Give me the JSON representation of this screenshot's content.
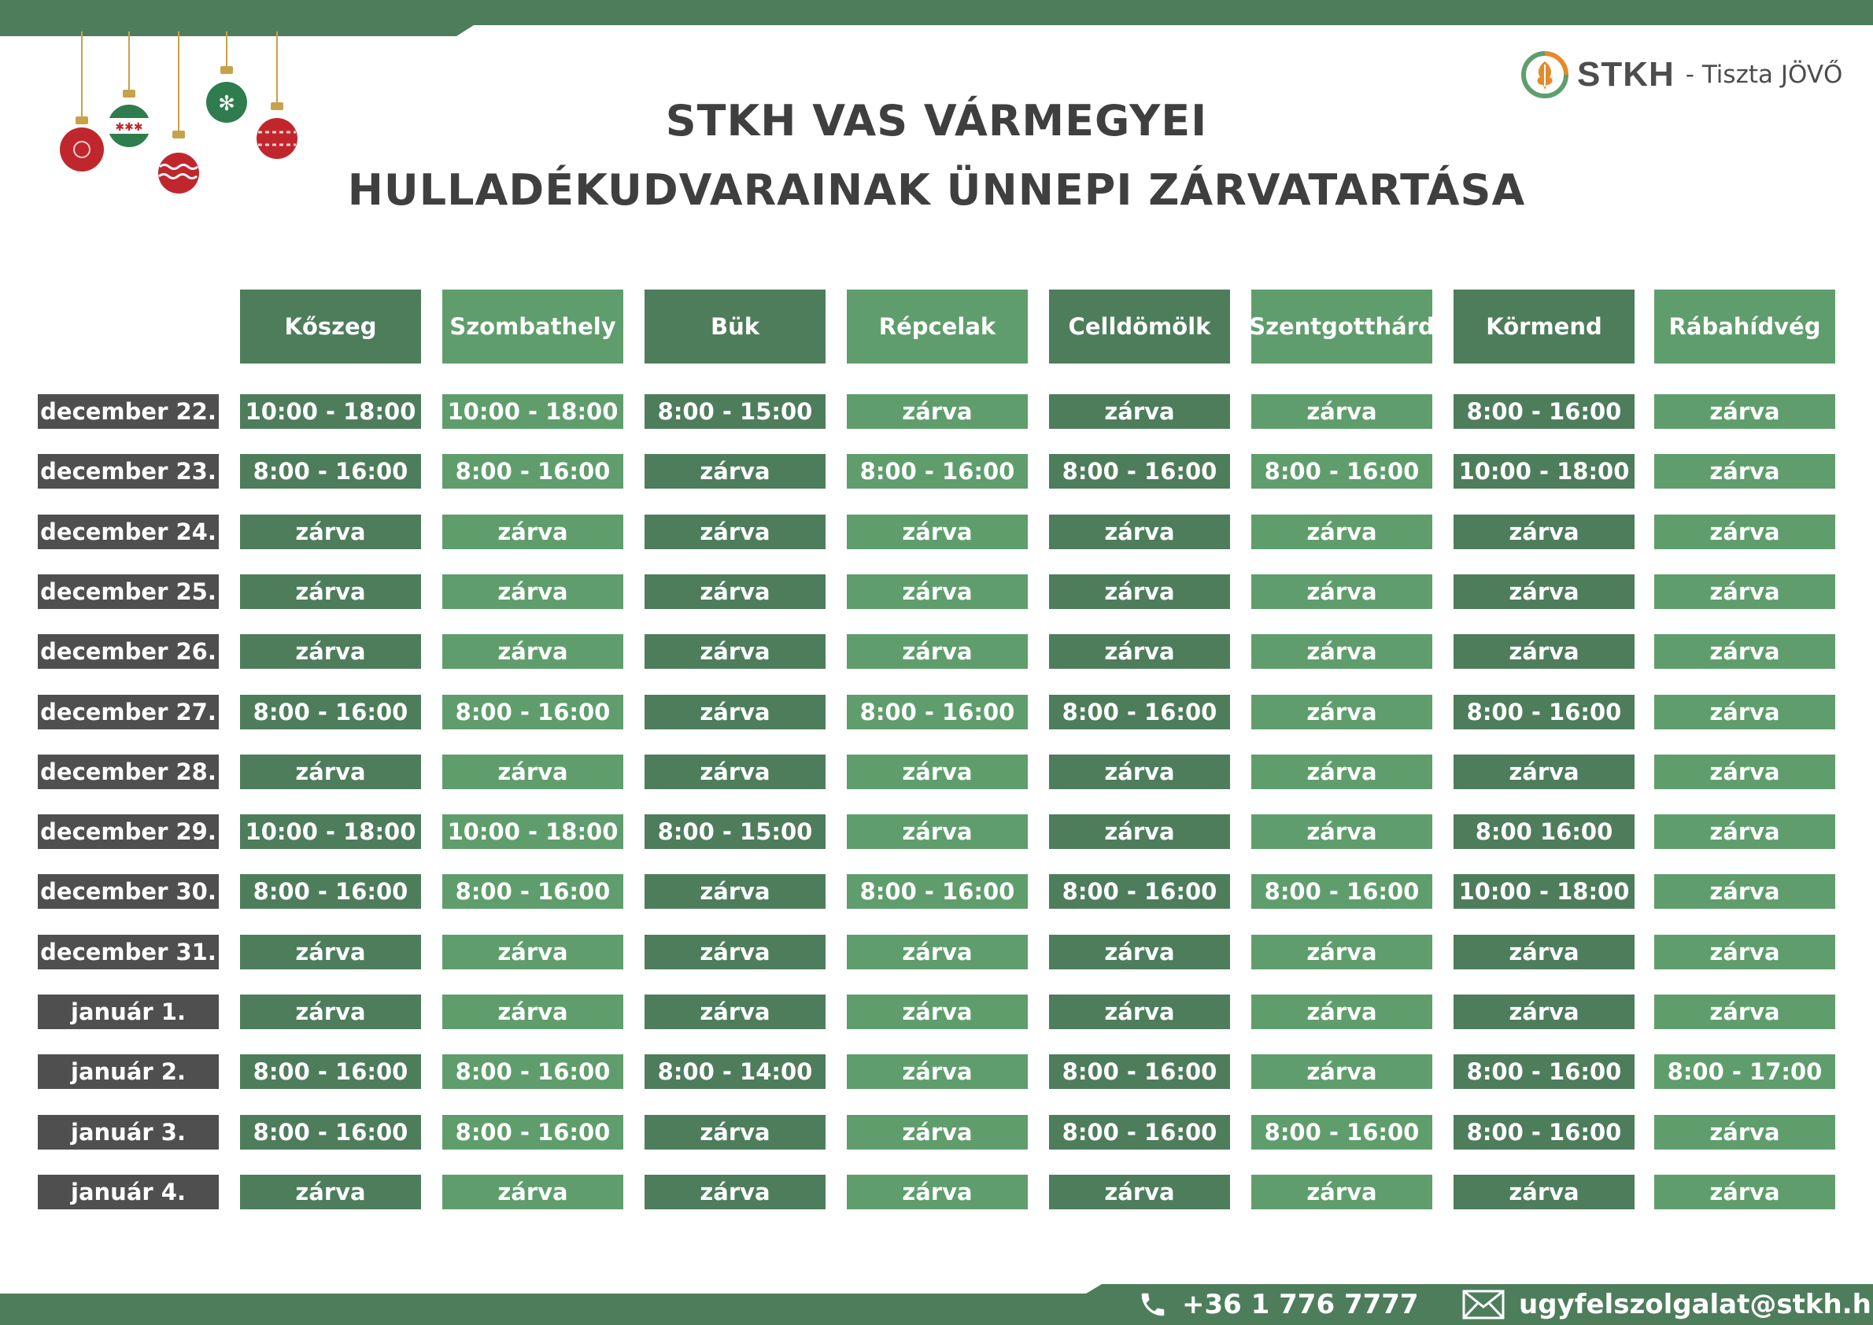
{
  "brand": {
    "name": "STKH",
    "tagline": "- Tiszta JÖVŐ"
  },
  "title": {
    "line1": "STKH VAS VÁRMEGYEI",
    "line2": "HULLADÉKUDVARAINAK ÜNNEPI ZÁRVATARTÁSA"
  },
  "colors": {
    "dark_green": "#4e7d5c",
    "light_green": "#5f9e6c",
    "date_gray": "#4f4f4f",
    "title_gray": "#3f3f3f"
  },
  "table": {
    "columns": [
      "Kőszeg",
      "Szombathely",
      "Bük",
      "Répcelak",
      "Celldömölk",
      "Szentgotthárd",
      "Körmend",
      "Rábahídvég"
    ],
    "rows": [
      {
        "date": "december 22.",
        "cells": [
          "10:00 - 18:00",
          "10:00 - 18:00",
          "8:00 - 15:00",
          "zárva",
          "zárva",
          "zárva",
          "8:00 - 16:00",
          "zárva"
        ]
      },
      {
        "date": "december 23.",
        "cells": [
          "8:00 - 16:00",
          "8:00 - 16:00",
          "zárva",
          "8:00 - 16:00",
          "8:00 - 16:00",
          "8:00 - 16:00",
          "10:00 - 18:00",
          "zárva"
        ]
      },
      {
        "date": "december 24.",
        "cells": [
          "zárva",
          "zárva",
          "zárva",
          "zárva",
          "zárva",
          "zárva",
          "zárva",
          "zárva"
        ]
      },
      {
        "date": "december 25.",
        "cells": [
          "zárva",
          "zárva",
          "zárva",
          "zárva",
          "zárva",
          "zárva",
          "zárva",
          "zárva"
        ]
      },
      {
        "date": "december 26.",
        "cells": [
          "zárva",
          "zárva",
          "zárva",
          "zárva",
          "zárva",
          "zárva",
          "zárva",
          "zárva"
        ]
      },
      {
        "date": "december 27.",
        "cells": [
          "8:00 - 16:00",
          "8:00 - 16:00",
          "zárva",
          "8:00 - 16:00",
          "8:00 - 16:00",
          "zárva",
          "8:00 - 16:00",
          "zárva"
        ]
      },
      {
        "date": "december 28.",
        "cells": [
          "zárva",
          "zárva",
          "zárva",
          "zárva",
          "zárva",
          "zárva",
          "zárva",
          "zárva"
        ]
      },
      {
        "date": "december 29.",
        "cells": [
          "10:00 - 18:00",
          "10:00 - 18:00",
          "8:00 - 15:00",
          "zárva",
          "zárva",
          "zárva",
          "8:00  16:00",
          "zárva"
        ]
      },
      {
        "date": "december 30.",
        "cells": [
          "8:00 - 16:00",
          "8:00 - 16:00",
          "zárva",
          "8:00 - 16:00",
          "8:00 - 16:00",
          "8:00 - 16:00",
          "10:00 - 18:00",
          "zárva"
        ]
      },
      {
        "date": "december 31.",
        "cells": [
          "zárva",
          "zárva",
          "zárva",
          "zárva",
          "zárva",
          "zárva",
          "zárva",
          "zárva"
        ]
      },
      {
        "date": "január 1.",
        "cells": [
          "zárva",
          "zárva",
          "zárva",
          "zárva",
          "zárva",
          "zárva",
          "zárva",
          "zárva"
        ]
      },
      {
        "date": "január 2.",
        "cells": [
          "8:00 - 16:00",
          "8:00 - 16:00",
          "8:00 - 14:00",
          "zárva",
          "8:00 - 16:00",
          "zárva",
          "8:00 - 16:00",
          "8:00 - 17:00"
        ]
      },
      {
        "date": "január 3.",
        "cells": [
          "8:00 - 16:00",
          "8:00 - 16:00",
          "zárva",
          "zárva",
          "8:00 - 16:00",
          "8:00 - 16:00",
          "8:00 - 16:00",
          "zárva"
        ]
      },
      {
        "date": "január 4.",
        "cells": [
          "zárva",
          "zárva",
          "zárva",
          "zárva",
          "zárva",
          "zárva",
          "zárva",
          "zárva"
        ]
      }
    ]
  },
  "contact": {
    "phone": "+36 1 776 7777",
    "email": "ugyfelszolgalat@stkh.hu",
    "phone_icon": "phone-icon",
    "email_icon": "envelope-icon"
  }
}
